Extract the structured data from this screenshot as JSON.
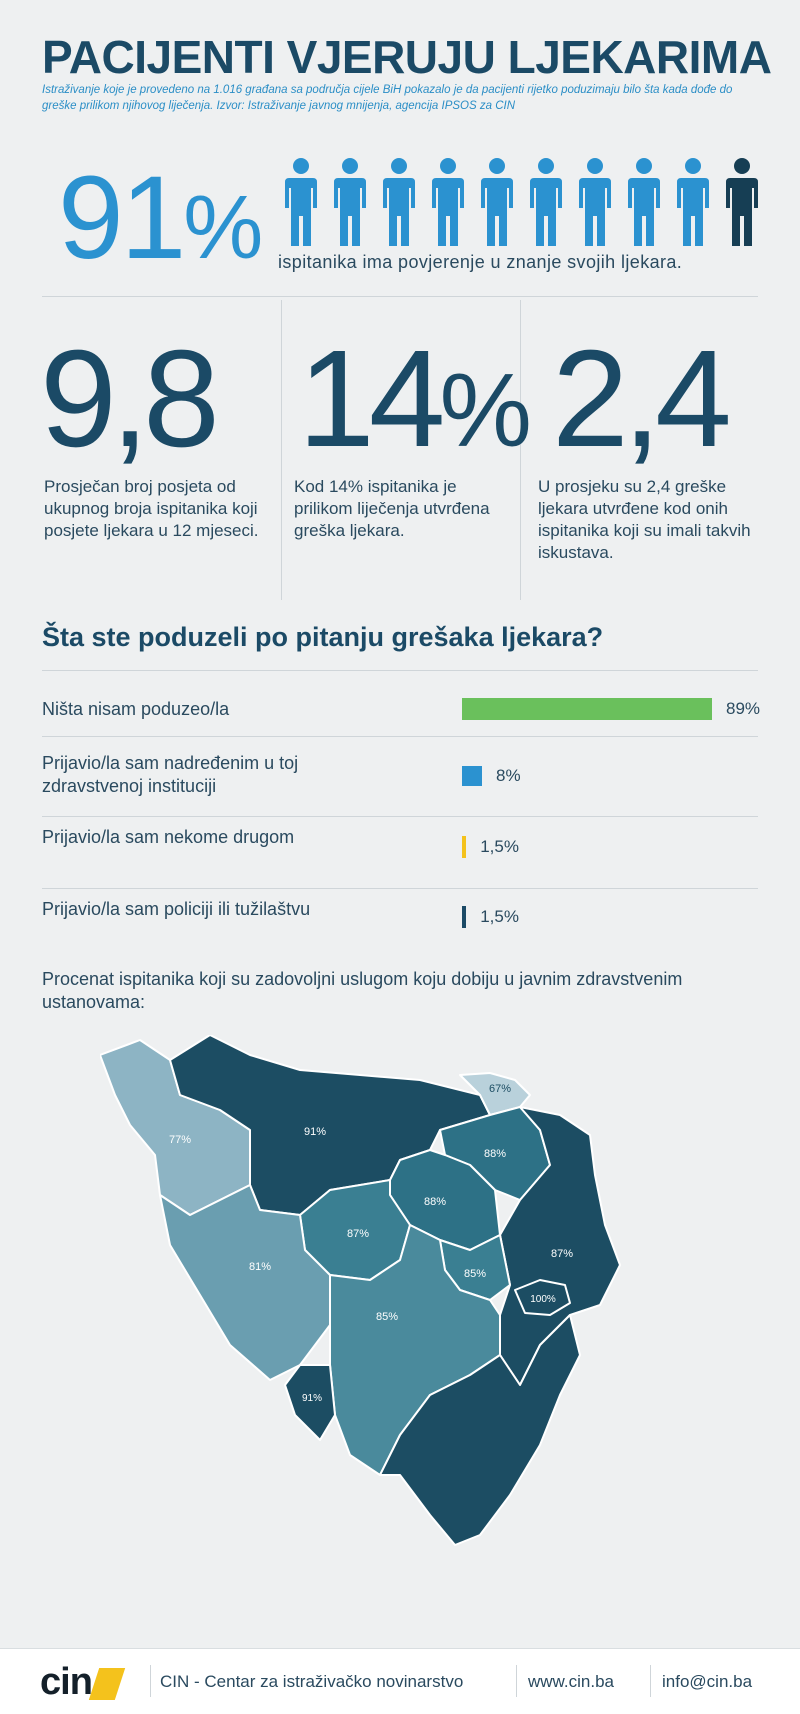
{
  "header": {
    "title": "PACIJENTI VJERUJU LJEKARIMA",
    "subtitle": "Istraživanje koje je provedeno na 1.016 građana sa područja cijele BiH pokazalo je da pacijenti rijetko poduzimaju bilo šta kada dođe do greške prilikom njihovog liječenja. Izvor: Istraživanje javnog mnijenja, agencija IPSOS za CIN"
  },
  "trust": {
    "value": "91",
    "unit": "%",
    "text": "ispitanika ima povjerenje u znanje svojih ljekara.",
    "people_total": 10,
    "people_filled": 9,
    "color_filled": "#2b92d0",
    "color_other": "#163e54"
  },
  "stats": [
    {
      "value": "9,8",
      "unit": "",
      "description": "Prosječan broj posjeta od ukupnog broja ispitanika koji posjete ljekara u 12 mjeseci."
    },
    {
      "value": "14",
      "unit": "%",
      "description": "Kod 14% ispitanika je prilikom liječenja utvrđena greška ljekara."
    },
    {
      "value": "2,4",
      "unit": "",
      "description": "U prosjeku su 2,4 greške ljekara utvrđene kod onih ispitanika koji su imali takvih iskustava."
    }
  ],
  "question": {
    "title": "Šta ste poduzeli po pitanju grešaka ljekara?",
    "answers": [
      {
        "label": "Ništa nisam poduzeo/la",
        "value_label": "89%",
        "percent": 89,
        "color": "#6ac05c"
      },
      {
        "label": "Prijavio/la sam nadređenim u toj zdravstvenoj instituciji",
        "value_label": "8%",
        "percent": 8,
        "color": "#2b92d0"
      },
      {
        "label": "Prijavio/la sam nekome drugom",
        "value_label": "1,5%",
        "percent": 1.5,
        "color": "#f4c21c"
      },
      {
        "label": "Prijavio/la sam policiji ili tužilaštvu",
        "value_label": "1,5%",
        "percent": 1.5,
        "color": "#1b4a66"
      }
    ]
  },
  "map": {
    "intro": "Procenat ispitanika koji su zadovoljni uslugom koju dobiju u javnim zdravstvenim ustanovama:",
    "regions": [
      {
        "label": "77%",
        "color": "#8db4c4"
      },
      {
        "label": "91%",
        "color": "#1c4d63"
      },
      {
        "label": "67%",
        "color": "#b9d1db"
      },
      {
        "label": "88%",
        "color": "#2d7186"
      },
      {
        "label": "88%",
        "color": "#2d7186"
      },
      {
        "label": "87%",
        "color": "#3a7f92"
      },
      {
        "label": "87%",
        "color": "#1c4d63"
      },
      {
        "label": "81%",
        "color": "#6a9eb0"
      },
      {
        "label": "85%",
        "color": "#3a7f92"
      },
      {
        "label": "85%",
        "color": "#4a8a9c"
      },
      {
        "label": "100%",
        "color": "#1c4d63"
      },
      {
        "label": "91%",
        "color": "#1c4d63"
      }
    ]
  },
  "footer": {
    "logo": "cin",
    "org": "CIN - Centar za istraživačko novinarstvo",
    "website": "www.cin.ba",
    "email": "info@cin.ba"
  }
}
